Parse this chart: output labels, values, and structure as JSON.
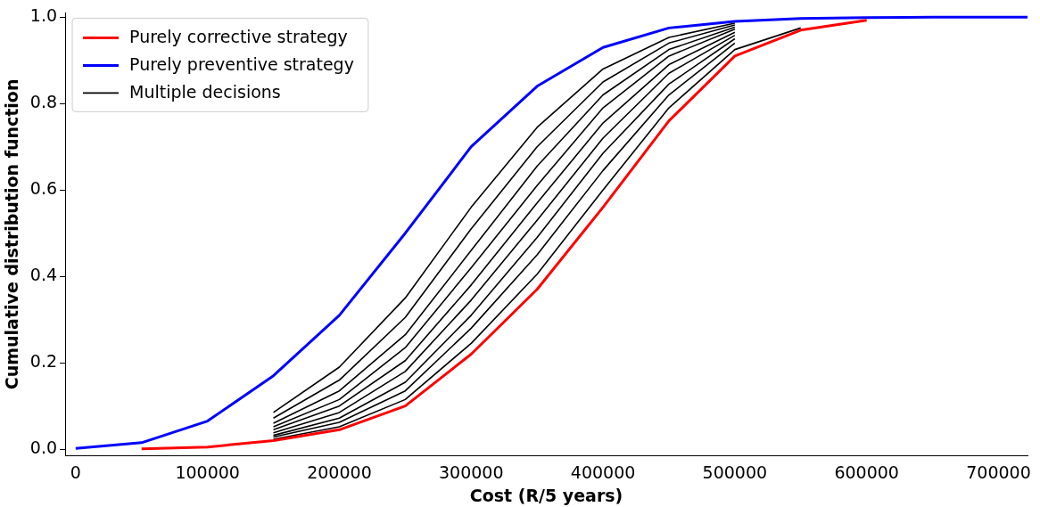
{
  "chart_data": {
    "type": "line",
    "xlabel": "Cost (R/5 years)",
    "ylabel": "Cumulative distribution function",
    "xlim": [
      -8000,
      722000
    ],
    "xticks": [
      0,
      100000,
      200000,
      300000,
      400000,
      500000,
      600000,
      700000
    ],
    "ylim": [
      -0.015,
      1.01
    ],
    "yticks": [
      {
        "value": 0,
        "label": "0.0"
      },
      0.2,
      0.4,
      0.6,
      0.8,
      {
        "value": 1,
        "label": "1.0"
      }
    ],
    "grid": false,
    "legend": "top left",
    "marker": "none",
    "line_style": "solid",
    "series": [
      {
        "name": "Purely corrective strategy",
        "color": "#ff0000",
        "x": [
          50000,
          100000,
          150000,
          200000,
          250000,
          300000,
          350000,
          400000,
          450000,
          500000,
          550000,
          600000
        ],
        "values": [
          0.001,
          0.005,
          0.02,
          0.045,
          0.1,
          0.22,
          0.37,
          0.56,
          0.76,
          0.91,
          0.97,
          0.993
        ]
      },
      {
        "name": "Purely preventive strategy",
        "color": "#0000ff",
        "x": [
          0,
          50000,
          100000,
          150000,
          200000,
          250000,
          300000,
          350000,
          400000,
          450000,
          500000,
          550000,
          600000,
          650000,
          700000,
          722000
        ],
        "values": [
          0.002,
          0.015,
          0.065,
          0.17,
          0.31,
          0.5,
          0.7,
          0.84,
          0.93,
          0.975,
          0.99,
          0.997,
          0.999,
          1,
          1,
          1
        ]
      },
      {
        "name": "Multiple decisions",
        "color": "#000000",
        "x": [
          150000,
          200000,
          250000,
          300000,
          350000,
          400000,
          450000,
          500000,
          550000
        ],
        "values": [
          0.023,
          0.052,
          0.115,
          0.245,
          0.405,
          0.6,
          0.79,
          0.925,
          0.975
        ]
      },
      {
        "color": "#000000",
        "x": [
          150000,
          200000,
          250000,
          300000,
          350000,
          400000,
          450000,
          500000
        ],
        "values": [
          0.028,
          0.062,
          0.135,
          0.28,
          0.45,
          0.645,
          0.82,
          0.94
        ]
      },
      {
        "color": "#000000",
        "x": [
          150000,
          200000,
          250000,
          300000,
          350000,
          400000,
          450000,
          500000
        ],
        "values": [
          0.032,
          0.072,
          0.155,
          0.31,
          0.49,
          0.685,
          0.845,
          0.95
        ]
      },
      {
        "color": "#000000",
        "x": [
          150000,
          200000,
          250000,
          300000,
          350000,
          400000,
          450000,
          500000
        ],
        "values": [
          0.038,
          0.085,
          0.18,
          0.345,
          0.53,
          0.72,
          0.87,
          0.958
        ]
      },
      {
        "color": "#000000",
        "x": [
          150000,
          200000,
          250000,
          300000,
          350000,
          400000,
          450000,
          500000
        ],
        "values": [
          0.045,
          0.1,
          0.205,
          0.38,
          0.57,
          0.755,
          0.89,
          0.965
        ]
      },
      {
        "color": "#000000",
        "x": [
          150000,
          200000,
          250000,
          300000,
          350000,
          400000,
          450000,
          500000
        ],
        "values": [
          0.052,
          0.115,
          0.235,
          0.42,
          0.61,
          0.79,
          0.91,
          0.972
        ]
      },
      {
        "color": "#000000",
        "x": [
          150000,
          200000,
          250000,
          300000,
          350000,
          400000,
          450000,
          500000
        ],
        "values": [
          0.06,
          0.135,
          0.265,
          0.46,
          0.655,
          0.82,
          0.925,
          0.977
        ]
      },
      {
        "color": "#000000",
        "x": [
          150000,
          200000,
          250000,
          300000,
          350000,
          400000,
          450000,
          500000
        ],
        "values": [
          0.072,
          0.16,
          0.305,
          0.51,
          0.7,
          0.85,
          0.94,
          0.982
        ]
      },
      {
        "color": "#000000",
        "x": [
          150000,
          200000,
          250000,
          300000,
          350000,
          400000,
          450000,
          500000
        ],
        "values": [
          0.085,
          0.19,
          0.35,
          0.56,
          0.745,
          0.88,
          0.953,
          0.986
        ]
      }
    ]
  }
}
